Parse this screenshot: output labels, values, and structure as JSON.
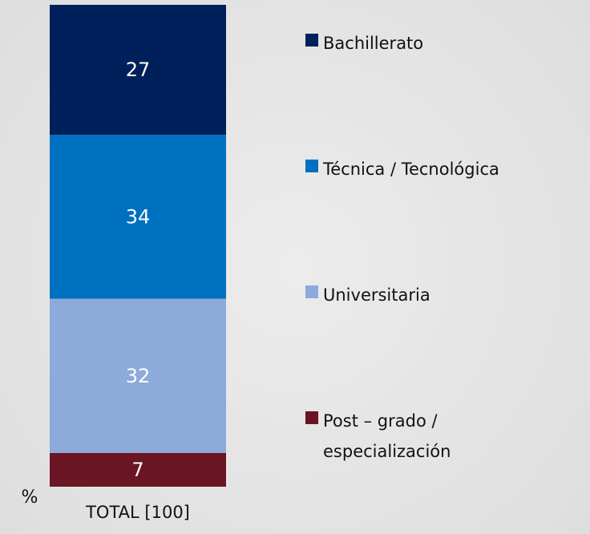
{
  "chart_data": {
    "type": "bar",
    "stacked": true,
    "categories": [
      "TOTAL [100]"
    ],
    "y_label": "%",
    "ylim": [
      0,
      100
    ],
    "series": [
      {
        "name": "Bachillerato",
        "color": "#00205b",
        "values": [
          27
        ]
      },
      {
        "name": "Técnica / Tecnológica",
        "color": "#0070c0",
        "values": [
          34
        ]
      },
      {
        "name": "Universitaria",
        "color": "#8eaadb",
        "values": [
          32
        ]
      },
      {
        "name": "Post – grado / especialización",
        "color": "#6b1424",
        "values": [
          7
        ]
      }
    ]
  }
}
